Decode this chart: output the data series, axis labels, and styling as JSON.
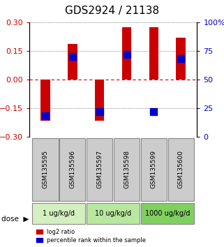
{
  "title": "GDS2924 / 21138",
  "samples": [
    "GSM135595",
    "GSM135596",
    "GSM135597",
    "GSM135598",
    "GSM135599",
    "GSM135600"
  ],
  "log2_ratio": [
    -0.215,
    0.185,
    -0.215,
    0.275,
    0.275,
    0.22
  ],
  "percentile": [
    18,
    70,
    22,
    72,
    22,
    68
  ],
  "dose_groups": [
    {
      "label": "1 ug/kg/d",
      "cols": [
        0,
        1
      ],
      "color": "#d4f0c0"
    },
    {
      "label": "10 ug/kg/d",
      "cols": [
        2,
        3
      ],
      "color": "#b8e8a0"
    },
    {
      "label": "1000 ug/kg/d",
      "cols": [
        4,
        5
      ],
      "color": "#7fd060"
    }
  ],
  "ylim_left": [
    -0.3,
    0.3
  ],
  "ylim_right": [
    0,
    100
  ],
  "yticks_left": [
    -0.3,
    -0.15,
    0,
    0.15,
    0.3
  ],
  "yticks_right": [
    0,
    25,
    50,
    75,
    100
  ],
  "ytick_labels_right": [
    "0",
    "25",
    "50",
    "75",
    "100%"
  ],
  "bar_color": "#cc0000",
  "blue_color": "#0000cc",
  "zero_line_color": "#cc0000",
  "dotted_line_color": "#555555",
  "bar_width": 0.35,
  "blue_square_size": 60,
  "sample_box_color": "#cccccc",
  "title_fontsize": 11,
  "tick_fontsize": 8,
  "label_fontsize": 8
}
